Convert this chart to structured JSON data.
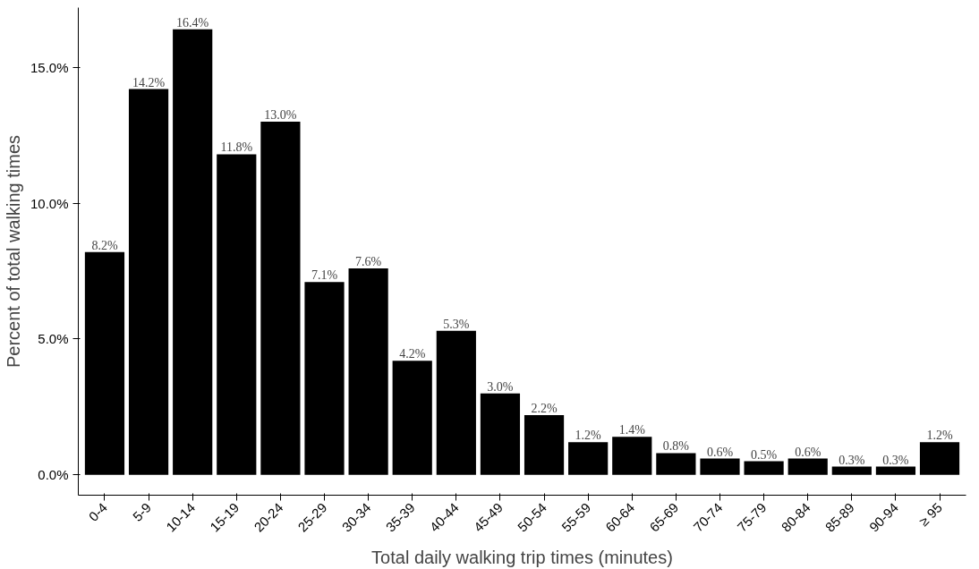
{
  "chart_data": {
    "type": "bar",
    "xlabel": "Total daily walking trip times (minutes)",
    "ylabel": "Percent of total walking times",
    "categories": [
      "0-4",
      "5-9",
      "10-14",
      "15-19",
      "20-24",
      "25-29",
      "30-34",
      "35-39",
      "40-44",
      "45-49",
      "50-54",
      "55-59",
      "60-64",
      "65-69",
      "70-74",
      "75-79",
      "80-84",
      "85-89",
      "90-94",
      "≥ 95"
    ],
    "values": [
      8.2,
      14.2,
      16.4,
      11.8,
      13.0,
      7.1,
      7.6,
      4.2,
      5.3,
      3.0,
      2.2,
      1.2,
      1.4,
      0.8,
      0.6,
      0.5,
      0.6,
      0.3,
      0.3,
      1.2
    ],
    "value_labels": [
      "8.2%",
      "14.2%",
      "16.4%",
      "11.8%",
      "13.0%",
      "7.1%",
      "7.6%",
      "4.2%",
      "5.3%",
      "3.0%",
      "2.2%",
      "1.2%",
      "1.4%",
      "0.8%",
      "0.6%",
      "0.5%",
      "0.6%",
      "0.3%",
      "0.3%",
      "1.2%"
    ],
    "color": "#000000",
    "ylim": [
      -0.75,
      17.2
    ],
    "yticks": [
      {
        "value": 0,
        "label": "0.0%"
      },
      {
        "value": 5,
        "label": "5.0%"
      },
      {
        "value": 10,
        "label": "10.0%"
      },
      {
        "value": 15,
        "label": "15.0%"
      }
    ],
    "grid": false
  }
}
